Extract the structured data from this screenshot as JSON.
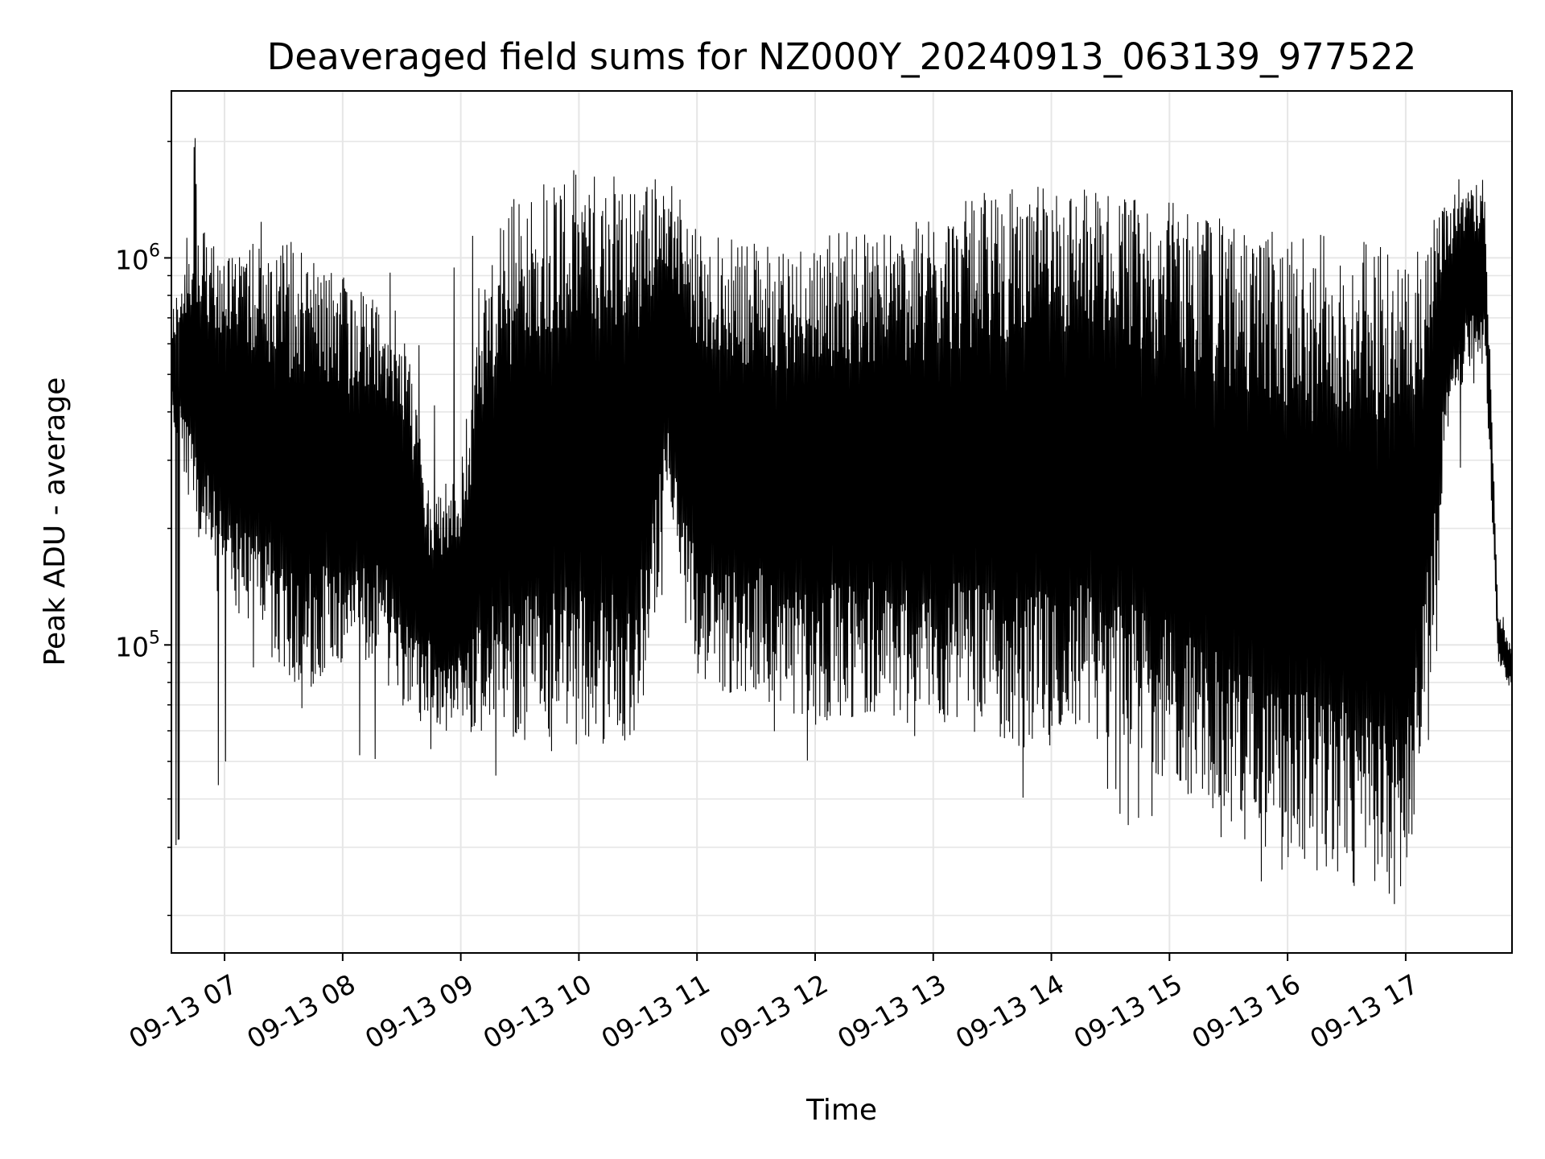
{
  "chart_data": {
    "type": "line",
    "title": "Deaveraged field sums for NZ000Y_20240913_063139_977522",
    "xlabel": "Time",
    "ylabel": "Peak ADU - average",
    "yscale": "log",
    "ylim": [
      16000,
      2700000
    ],
    "xlim": [
      "2024-09-13 06:33",
      "2024-09-13 17:54"
    ],
    "grid": true,
    "line_color": "#000000",
    "grid_color": "#e6e6e6",
    "x_ticks": [
      "09-13 07",
      "09-13 08",
      "09-13 09",
      "09-13 10",
      "09-13 11",
      "09-13 12",
      "09-13 13",
      "09-13 14",
      "09-13 15",
      "09-13 16",
      "09-13 17"
    ],
    "x_tick_times": [
      "2024-09-13 07:00",
      "2024-09-13 08:00",
      "2024-09-13 09:00",
      "2024-09-13 10:00",
      "2024-09-13 11:00",
      "2024-09-13 12:00",
      "2024-09-13 13:00",
      "2024-09-13 14:00",
      "2024-09-13 15:00",
      "2024-09-13 16:00",
      "2024-09-13 17:00"
    ],
    "y_ticks": [
      {
        "value": 100000,
        "base": "10",
        "exp": "5"
      },
      {
        "value": 1000000,
        "base": "10",
        "exp": "6"
      }
    ],
    "envelope": {
      "times": [
        "2024-09-13 06:33",
        "2024-09-13 06:45",
        "2024-09-13 07:00",
        "2024-09-13 07:15",
        "2024-09-13 07:30",
        "2024-09-13 07:45",
        "2024-09-13 08:00",
        "2024-09-13 08:15",
        "2024-09-13 08:30",
        "2024-09-13 08:45",
        "2024-09-13 09:00",
        "2024-09-13 09:15",
        "2024-09-13 09:30",
        "2024-09-13 09:45",
        "2024-09-13 10:00",
        "2024-09-13 10:15",
        "2024-09-13 10:30",
        "2024-09-13 10:45",
        "2024-09-13 11:00",
        "2024-09-13 11:15",
        "2024-09-13 11:30",
        "2024-09-13 11:45",
        "2024-09-13 12:00",
        "2024-09-13 12:15",
        "2024-09-13 12:30",
        "2024-09-13 12:45",
        "2024-09-13 13:00",
        "2024-09-13 13:15",
        "2024-09-13 13:30",
        "2024-09-13 13:45",
        "2024-09-13 14:00",
        "2024-09-13 14:15",
        "2024-09-13 14:30",
        "2024-09-13 14:45",
        "2024-09-13 15:00",
        "2024-09-13 15:15",
        "2024-09-13 15:30",
        "2024-09-13 15:45",
        "2024-09-13 16:00",
        "2024-09-13 16:15",
        "2024-09-13 16:30",
        "2024-09-13 16:45",
        "2024-09-13 17:00",
        "2024-09-13 17:10",
        "2024-09-13 17:20",
        "2024-09-13 17:30",
        "2024-09-13 17:40",
        "2024-09-13 17:47",
        "2024-09-13 17:54"
      ],
      "low": [
        400000,
        200000,
        120000,
        110000,
        80000,
        75000,
        90000,
        90000,
        70000,
        60000,
        60000,
        55000,
        55000,
        52000,
        55000,
        55000,
        58000,
        200000,
        80000,
        75000,
        75000,
        70000,
        62000,
        65000,
        65000,
        62000,
        62000,
        60000,
        58000,
        52000,
        55000,
        58000,
        55000,
        48000,
        45000,
        38000,
        33000,
        30000,
        27000,
        26000,
        24000,
        22000,
        21000,
        60000,
        300000,
        500000,
        600000,
        90000,
        75000
      ],
      "high": [
        700000,
        1300000,
        1000000,
        1100000,
        1150000,
        1000000,
        900000,
        850000,
        750000,
        230000,
        300000,
        1100000,
        1500000,
        1700000,
        1700000,
        1650000,
        1600000,
        1700000,
        1200000,
        1150000,
        1100000,
        1100000,
        1150000,
        1200000,
        1200000,
        1200000,
        1300000,
        1400000,
        1500000,
        1550000,
        1550000,
        1550000,
        1500000,
        1450000,
        1400000,
        1350000,
        1250000,
        1200000,
        1150000,
        1150000,
        1150000,
        1100000,
        1100000,
        1150000,
        1500000,
        1500000,
        1600000,
        120000,
        100000
      ],
      "spike_low_min": [
        16000,
        25000,
        40000,
        50000,
        55000,
        48000,
        55000,
        35000,
        42000,
        48000,
        43000,
        40000,
        38000,
        40000,
        42000,
        45000,
        46000,
        70000,
        58000,
        60000,
        55000,
        50000,
        50000,
        52000,
        48000,
        45000,
        46000,
        44000,
        42000,
        40000,
        44000,
        42000,
        40000,
        30000,
        30000,
        28000,
        25000,
        20000,
        18000,
        17000,
        17000,
        17500,
        17000,
        40000,
        120000,
        300000,
        500000,
        85000,
        70000
      ],
      "spike_high_max": [
        800000,
        2200000,
        1650000,
        1350000,
        1250000,
        1300000,
        1100000,
        1050000,
        900000,
        700000,
        1150000,
        1450000,
        1700000,
        1800000,
        1800000,
        1750000,
        1800000,
        1800000,
        1300000,
        1300000,
        1250000,
        1300000,
        1300000,
        1300000,
        1600000,
        1650000,
        1650000,
        1650000,
        1700000,
        1650000,
        1650000,
        1650000,
        1550000,
        1600000,
        1500000,
        1450000,
        1400000,
        1350000,
        1300000,
        1250000,
        1250000,
        1200000,
        1200000,
        1300000,
        1700000,
        1900000,
        2000000,
        130000,
        110000
      ]
    }
  }
}
